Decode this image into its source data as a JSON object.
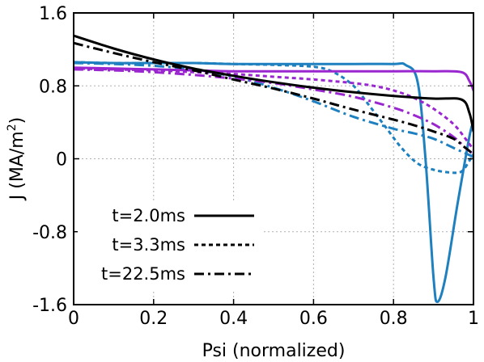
{
  "chart_data": {
    "type": "line",
    "title": "",
    "xlabel": "Psi (normalized)",
    "ylabel_main": "J (MA/m",
    "ylabel_sup": "2",
    "ylabel_close": ")",
    "xlim": [
      0,
      1
    ],
    "ylim": [
      -1.6,
      1.6
    ],
    "x_ticks": [
      {
        "value": 0,
        "label": "0"
      },
      {
        "value": 0.2,
        "label": "0.2"
      },
      {
        "value": 0.4,
        "label": "0.4"
      },
      {
        "value": 0.6,
        "label": "0.6"
      },
      {
        "value": 0.8,
        "label": "0.8"
      },
      {
        "value": 1,
        "label": "1"
      }
    ],
    "y_ticks": [
      {
        "value": 1.6,
        "label": "1.6"
      },
      {
        "value": 0.8,
        "label": "0.8"
      },
      {
        "value": 0,
        "label": "0"
      },
      {
        "value": -0.8,
        "label": "-0.8"
      },
      {
        "value": -1.6,
        "label": "-1.6"
      }
    ],
    "grid": true,
    "legend_position": "bottom-left",
    "legend": [
      {
        "label": "t=2.0ms",
        "style": "solid"
      },
      {
        "label": "t=3.3ms",
        "style": "dotted"
      },
      {
        "label": "t=22.5ms",
        "style": "dashdot"
      }
    ],
    "colors": {
      "black": "#000000",
      "blue": "#1f80c0",
      "purple": "#9a26d0"
    },
    "series": [
      {
        "color": "black",
        "style": "solid",
        "x": [
          0,
          0.1,
          0.2,
          0.3,
          0.4,
          0.5,
          0.6,
          0.7,
          0.8,
          0.9,
          0.97,
          0.99,
          1.0
        ],
        "y": [
          1.35,
          1.21,
          1.09,
          0.99,
          0.91,
          0.84,
          0.78,
          0.73,
          0.69,
          0.66,
          0.65,
          0.5,
          0.3
        ]
      },
      {
        "color": "black",
        "style": "dashdot",
        "x": [
          0,
          0.1,
          0.2,
          0.3,
          0.4,
          0.5,
          0.6,
          0.7,
          0.8,
          0.85,
          0.9,
          0.95,
          0.98,
          1.0
        ],
        "y": [
          1.27,
          1.16,
          1.06,
          0.97,
          0.87,
          0.77,
          0.66,
          0.54,
          0.43,
          0.37,
          0.3,
          0.22,
          0.12,
          0.05
        ]
      },
      {
        "color": "blue",
        "style": "solid",
        "x": [
          0,
          0.1,
          0.2,
          0.3,
          0.4,
          0.5,
          0.6,
          0.7,
          0.8,
          0.83,
          0.86,
          0.88,
          0.9,
          0.91,
          0.93,
          0.96,
          0.99,
          1.0
        ],
        "y": [
          1.06,
          1.05,
          1.05,
          1.05,
          1.04,
          1.04,
          1.04,
          1.04,
          1.04,
          1.03,
          0.85,
          0.0,
          -1.3,
          -1.57,
          -1.3,
          -0.5,
          0.25,
          0.4
        ]
      },
      {
        "color": "blue",
        "style": "dotted",
        "x": [
          0,
          0.1,
          0.2,
          0.3,
          0.4,
          0.5,
          0.6,
          0.65,
          0.7,
          0.74,
          0.78,
          0.82,
          0.86,
          0.9,
          0.94,
          0.97,
          0.99,
          1.0
        ],
        "y": [
          1.06,
          1.05,
          1.05,
          1.05,
          1.04,
          1.03,
          1.01,
          0.95,
          0.8,
          0.58,
          0.35,
          0.12,
          -0.05,
          -0.12,
          -0.15,
          -0.14,
          -0.02,
          0.05
        ]
      },
      {
        "color": "blue",
        "style": "dashdot",
        "x": [
          0,
          0.1,
          0.2,
          0.3,
          0.4,
          0.5,
          0.6,
          0.7,
          0.8,
          0.85,
          0.9,
          0.95,
          1.0
        ],
        "y": [
          1.05,
          1.04,
          1.02,
          0.98,
          0.9,
          0.78,
          0.63,
          0.46,
          0.33,
          0.28,
          0.22,
          0.12,
          0.02
        ]
      },
      {
        "color": "purple",
        "style": "solid",
        "x": [
          0,
          0.1,
          0.2,
          0.3,
          0.4,
          0.5,
          0.6,
          0.7,
          0.8,
          0.9,
          0.97,
          0.99,
          1.0
        ],
        "y": [
          1.0,
          0.99,
          0.98,
          0.97,
          0.96,
          0.96,
          0.96,
          0.96,
          0.96,
          0.96,
          0.95,
          0.85,
          0.75
        ]
      },
      {
        "color": "purple",
        "style": "dotted",
        "x": [
          0,
          0.1,
          0.2,
          0.3,
          0.4,
          0.5,
          0.6,
          0.7,
          0.75,
          0.8,
          0.85,
          0.9,
          0.95,
          0.98,
          1.0
        ],
        "y": [
          0.99,
          0.98,
          0.97,
          0.95,
          0.93,
          0.9,
          0.87,
          0.83,
          0.8,
          0.75,
          0.67,
          0.55,
          0.38,
          0.22,
          0.1
        ]
      },
      {
        "color": "purple",
        "style": "dashdot",
        "x": [
          0,
          0.1,
          0.2,
          0.3,
          0.4,
          0.5,
          0.6,
          0.7,
          0.8,
          0.85,
          0.9,
          0.95,
          0.98,
          1.0
        ],
        "y": [
          0.98,
          0.97,
          0.95,
          0.92,
          0.88,
          0.83,
          0.76,
          0.68,
          0.56,
          0.48,
          0.38,
          0.24,
          0.12,
          0.05
        ]
      }
    ]
  }
}
